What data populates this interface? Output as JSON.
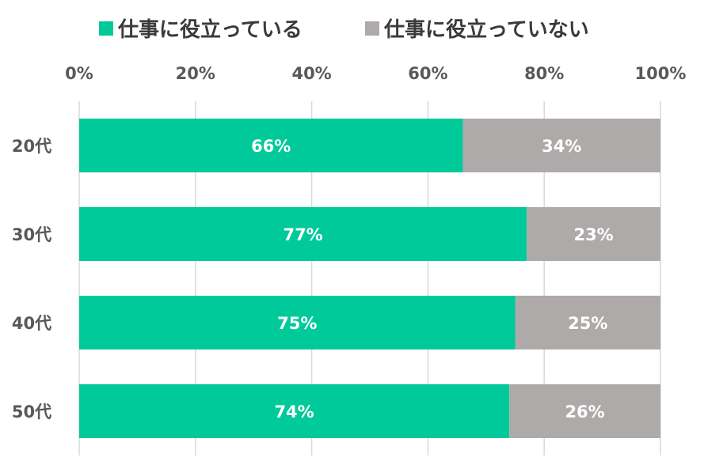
{
  "chart_data": {
    "type": "bar",
    "orientation": "horizontal",
    "stacked": true,
    "categories": [
      "20代",
      "30代",
      "40代",
      "50代"
    ],
    "series": [
      {
        "name": "仕事に役立っている",
        "values": [
          66,
          77,
          75,
          74
        ],
        "labels": [
          "66%",
          "77%",
          "75%",
          "74%"
        ]
      },
      {
        "name": "仕事に役立っていない",
        "values": [
          34,
          23,
          25,
          26
        ],
        "labels": [
          "34%",
          "23%",
          "25%",
          "26%"
        ]
      }
    ],
    "xlim": [
      0,
      100
    ],
    "x_ticks": [
      0,
      20,
      40,
      60,
      80,
      100
    ],
    "x_tick_labels": [
      "0%",
      "20%",
      "40%",
      "60%",
      "80%",
      "100%"
    ],
    "x_tick_position": "top",
    "grid": true,
    "legend_position": "top"
  },
  "colors": {
    "series": [
      "#00c99a",
      "#aeaaa9"
    ],
    "grid": "#d9d9d9",
    "tick_text": "#595959",
    "legend_text": "#3a3a3a",
    "data_label_text": "#ffffff"
  }
}
